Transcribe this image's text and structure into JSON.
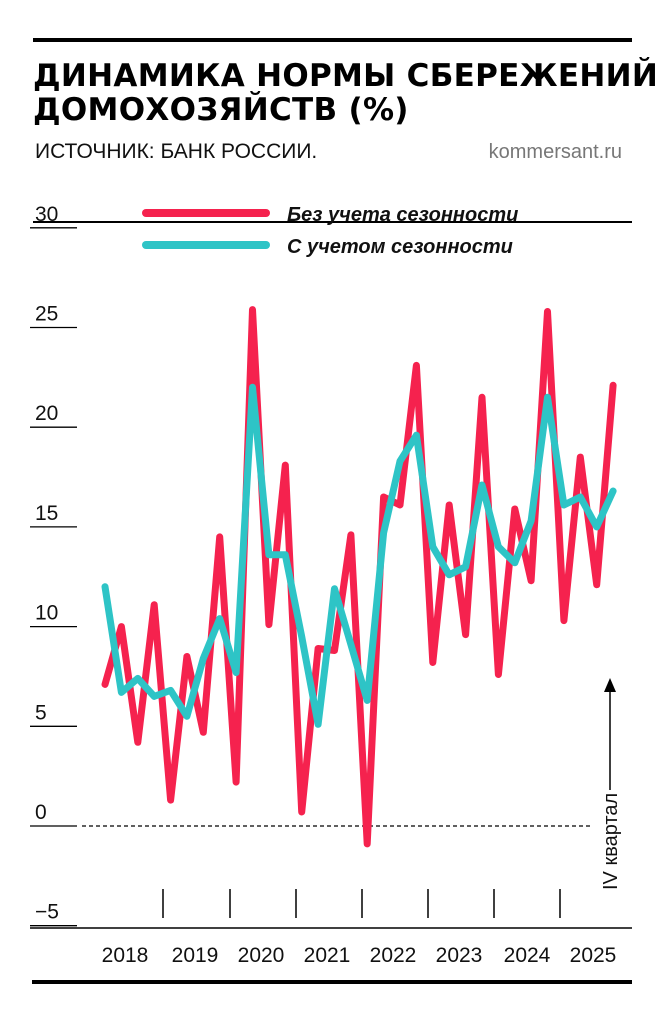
{
  "header": {
    "title_line1": "ДИНАМИКА НОРМЫ СБЕРЕЖЕНИЙ",
    "title_line2": "ДОМОХОЗЯЙСТВ (%)",
    "source": "ИСТОЧНИК: БАНК РОССИИ.",
    "site": "kommersant.ru"
  },
  "chart_data": {
    "type": "line",
    "title": "ДИНАМИКА НОРМЫ СБЕРЕЖЕНИЙ ДОМОХОЗЯЙСТВ (%)",
    "ylim": [
      -5,
      30
    ],
    "yticks": [
      "30",
      "25",
      "20",
      "15",
      "10",
      "5",
      "0",
      "−5"
    ],
    "ytick_values": [
      30,
      25,
      20,
      15,
      10,
      5,
      0,
      -5
    ],
    "year_labels": [
      "2018",
      "2019",
      "2020",
      "2021",
      "2022",
      "2023",
      "2024",
      "2025"
    ],
    "x": [
      "2018 Q1",
      "2018 Q2",
      "2018 Q3",
      "2018 Q4",
      "2019 Q1",
      "2019 Q2",
      "2019 Q3",
      "2019 Q4",
      "2020 Q1",
      "2020 Q2",
      "2020 Q3",
      "2020 Q4",
      "2021 Q1",
      "2021 Q2",
      "2021 Q3",
      "2021 Q4",
      "2022 Q1",
      "2022 Q2",
      "2022 Q3",
      "2022 Q4",
      "2023 Q1",
      "2023 Q2",
      "2023 Q3",
      "2023 Q4",
      "2024 Q1",
      "2024 Q2",
      "2024 Q3",
      "2024 Q4",
      "2025 Q1",
      "2025 Q2",
      "2025 Q3",
      "2025 Q4"
    ],
    "series": [
      {
        "name": "Без учета сезонности",
        "color": "#f5224e",
        "values": [
          7.1,
          10.0,
          4.2,
          11.1,
          1.3,
          8.5,
          4.7,
          14.5,
          2.2,
          25.9,
          10.1,
          18.1,
          0.7,
          8.9,
          8.8,
          14.6,
          -0.9,
          16.5,
          16.1,
          23.1,
          8.2,
          16.1,
          9.6,
          21.5,
          7.6,
          15.9,
          12.3,
          25.8,
          10.3,
          18.5,
          12.1,
          22.1
        ]
      },
      {
        "name": "С учетом сезонности",
        "color": "#2ec4c6",
        "values": [
          12.0,
          6.7,
          7.4,
          6.5,
          6.8,
          5.5,
          8.4,
          10.4,
          7.7,
          22.0,
          13.6,
          13.6,
          9.5,
          5.1,
          11.9,
          9.1,
          6.3,
          14.7,
          18.3,
          19.6,
          14.0,
          12.6,
          13.0,
          17.1,
          14.0,
          13.2,
          15.3,
          21.5,
          16.1,
          16.5,
          15.0,
          16.8
        ]
      }
    ],
    "annotation": "IV квартал",
    "zero_line": "dashed",
    "grid": false,
    "legend_position": "top"
  }
}
